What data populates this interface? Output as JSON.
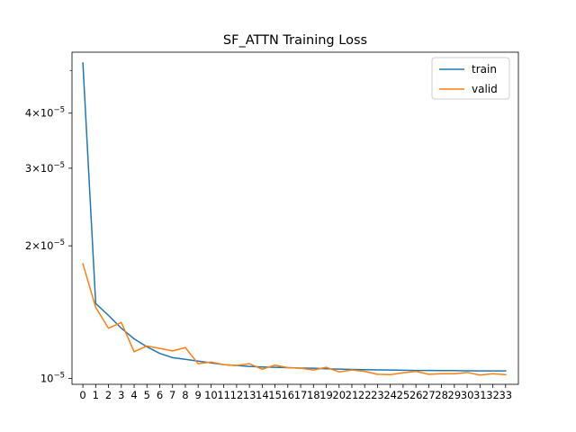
{
  "chart_data": {
    "type": "line",
    "title": "SF_ATTN Training Loss",
    "xlabel": "",
    "ylabel": "",
    "yscale": "log",
    "xlim": [
      -0.85,
      34.0
    ],
    "ylim": [
      9.7e-06,
      5.5e-05
    ],
    "grid": false,
    "legend_position": "top-right",
    "x": [
      0,
      1,
      2,
      3,
      4,
      5,
      6,
      7,
      8,
      9,
      10,
      11,
      12,
      13,
      14,
      15,
      16,
      17,
      18,
      19,
      20,
      21,
      22,
      23,
      24,
      25,
      26,
      27,
      28,
      29,
      30,
      31,
      32,
      33
    ],
    "x_tick_labels": [
      "0",
      "1",
      "2",
      "3",
      "4",
      "5",
      "6",
      "7",
      "8",
      "9",
      "10",
      "11",
      "12",
      "13",
      "14",
      "15",
      "16",
      "17",
      "18",
      "19",
      "20",
      "21",
      "22",
      "23",
      "24",
      "25",
      "26",
      "27",
      "28",
      "29",
      "30",
      "31",
      "32",
      "33"
    ],
    "y_ticks": [
      {
        "value": 1e-05,
        "mantissa": "10",
        "exponent": "−5"
      },
      {
        "value": 2e-05,
        "mantissa": "2×10",
        "exponent": "−5"
      },
      {
        "value": 3e-05,
        "mantissa": "3×10",
        "exponent": "−5"
      },
      {
        "value": 4e-05,
        "mantissa": "4×10",
        "exponent": "−5"
      }
    ],
    "y_minor_ticks": [
      5e-05
    ],
    "series": [
      {
        "name": "train",
        "color": "#1f77b4",
        "values": [
          5.2e-05,
          1.48e-05,
          1.39e-05,
          1.3e-05,
          1.23e-05,
          1.18e-05,
          1.14e-05,
          1.115e-05,
          1.105e-05,
          1.095e-05,
          1.085e-05,
          1.075e-05,
          1.07e-05,
          1.065e-05,
          1.062e-05,
          1.06e-05,
          1.058e-05,
          1.056e-05,
          1.055e-05,
          1.052e-05,
          1.05e-05,
          1.048e-05,
          1.047e-05,
          1.046e-05,
          1.045e-05,
          1.044e-05,
          1.043e-05,
          1.043e-05,
          1.042e-05,
          1.042e-05,
          1.041e-05,
          1.04e-05,
          1.04e-05,
          1.04e-05
        ]
      },
      {
        "name": "valid",
        "color": "#ff7f0e",
        "values": [
          1.82e-05,
          1.45e-05,
          1.3e-05,
          1.34e-05,
          1.15e-05,
          1.185e-05,
          1.17e-05,
          1.155e-05,
          1.175e-05,
          1.08e-05,
          1.09e-05,
          1.075e-05,
          1.07e-05,
          1.08e-05,
          1.05e-05,
          1.072e-05,
          1.058e-05,
          1.055e-05,
          1.045e-05,
          1.06e-05,
          1.035e-05,
          1.045e-05,
          1.038e-05,
          1.022e-05,
          1.02e-05,
          1.03e-05,
          1.038e-05,
          1.022e-05,
          1.025e-05,
          1.025e-05,
          1.032e-05,
          1.018e-05,
          1.025e-05,
          1.02e-05
        ]
      }
    ]
  }
}
